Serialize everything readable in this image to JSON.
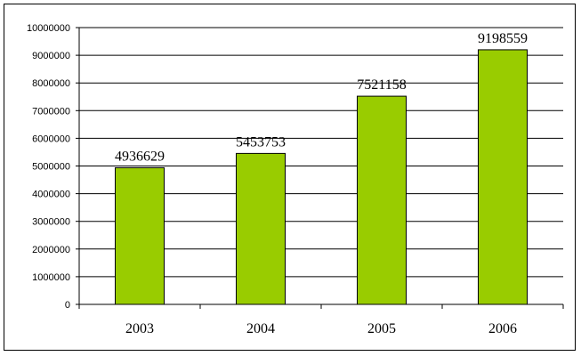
{
  "chart_data": {
    "type": "bar",
    "categories": [
      "2003",
      "2004",
      "2005",
      "2006"
    ],
    "values": [
      4936629,
      5453753,
      7521158,
      9198559
    ],
    "data_labels": [
      "4936629",
      "5453753",
      "7521158",
      "9198559"
    ],
    "ylim": [
      0,
      10000000
    ],
    "yticks": [
      0,
      1000000,
      2000000,
      3000000,
      4000000,
      5000000,
      6000000,
      7000000,
      8000000,
      9000000,
      10000000
    ],
    "ytick_labels": [
      "0",
      "1000000",
      "2000000",
      "3000000",
      "4000000",
      "5000000",
      "6000000",
      "7000000",
      "8000000",
      "9000000",
      "10000000"
    ],
    "grid": true,
    "bar_color": "#99cc00",
    "title": "",
    "xlabel": "",
    "ylabel": ""
  }
}
